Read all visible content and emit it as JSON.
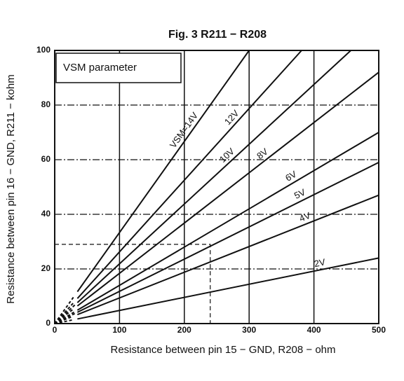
{
  "chart_data": {
    "type": "line",
    "title": "Fig. 3 R211 − R208",
    "legend_title": "VSM parameter",
    "xlabel": "Resistance between pin 15 − GND, R208 − ohm",
    "ylabel": "Resistance between pin 16 − GND, R211 − kohm",
    "xlim": [
      0,
      500
    ],
    "ylim": [
      0,
      100
    ],
    "xticks": [
      0,
      100,
      200,
      300,
      400,
      500
    ],
    "yticks": [
      0,
      20,
      40,
      60,
      80,
      100
    ],
    "grid": true,
    "color": "#111111",
    "dashed_below_x": 35,
    "guide": {
      "x": 240,
      "y": 29
    },
    "series": [
      {
        "name": "VSM=14V",
        "x": [
          0,
          300
        ],
        "values": [
          0,
          100
        ]
      },
      {
        "name": "12V",
        "x": [
          0,
          381
        ],
        "values": [
          0,
          100
        ]
      },
      {
        "name": "10V",
        "x": [
          0,
          457
        ],
        "values": [
          0,
          100
        ]
      },
      {
        "name": "8V",
        "x": [
          0,
          500
        ],
        "values": [
          0,
          92
        ]
      },
      {
        "name": "6V",
        "x": [
          0,
          500
        ],
        "values": [
          0,
          70
        ]
      },
      {
        "name": "5V",
        "x": [
          0,
          500
        ],
        "values": [
          0,
          59
        ]
      },
      {
        "name": "4V",
        "x": [
          0,
          500
        ],
        "values": [
          0,
          47
        ]
      },
      {
        "name": "2V",
        "x": [
          0,
          500
        ],
        "values": [
          0,
          24
        ]
      }
    ]
  }
}
